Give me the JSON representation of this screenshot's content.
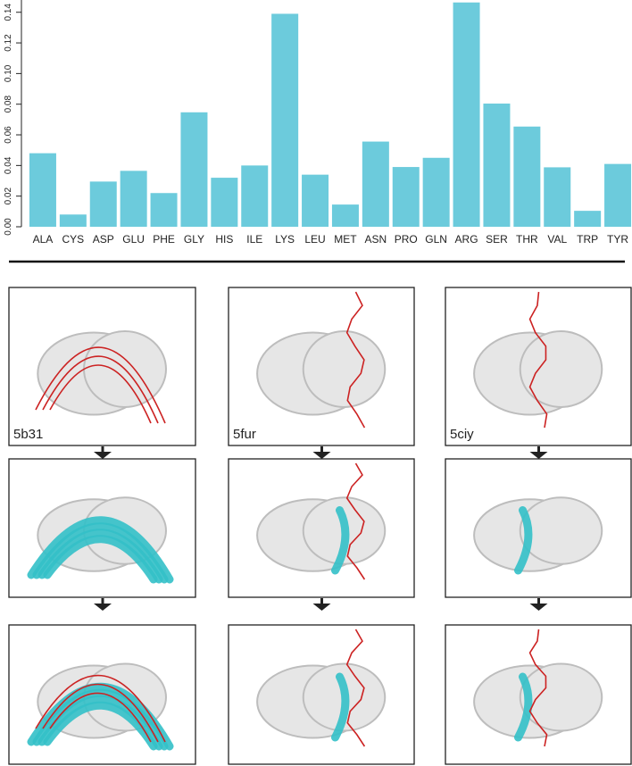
{
  "chart_data": {
    "type": "bar",
    "categories": [
      "ALA",
      "CYS",
      "ASP",
      "GLU",
      "PHE",
      "GLY",
      "HIS",
      "ILE",
      "LYS",
      "LEU",
      "MET",
      "ASN",
      "PRO",
      "GLN",
      "ARG",
      "SER",
      "THR",
      "VAL",
      "TRP",
      "TYR"
    ],
    "values": [
      0.048,
      0.008,
      0.0295,
      0.0365,
      0.022,
      0.0747,
      0.032,
      0.04,
      0.139,
      0.034,
      0.0145,
      0.0556,
      0.039,
      0.045,
      0.1464,
      0.0804,
      0.0654,
      0.0388,
      0.0104,
      0.041
    ],
    "color": "#6ccbdc",
    "ylim": [
      0,
      0.148
    ],
    "yticks": [
      {
        "value": 0,
        "label": "0.00"
      },
      {
        "value": 0.02,
        "label": "0.02"
      },
      {
        "value": 0.04,
        "label": "0.04"
      },
      {
        "value": 0.06,
        "label": "0.06"
      },
      {
        "value": 0.08,
        "label": "0.08"
      },
      {
        "value": 0.1,
        "label": "0.10"
      },
      {
        "value": 0.12,
        "label": "0.12"
      },
      {
        "value": 0.14,
        "label": "0.14"
      }
    ],
    "grid": false
  },
  "panels": {
    "labels": [
      "5b31",
      "5fur",
      "5ciy"
    ]
  }
}
